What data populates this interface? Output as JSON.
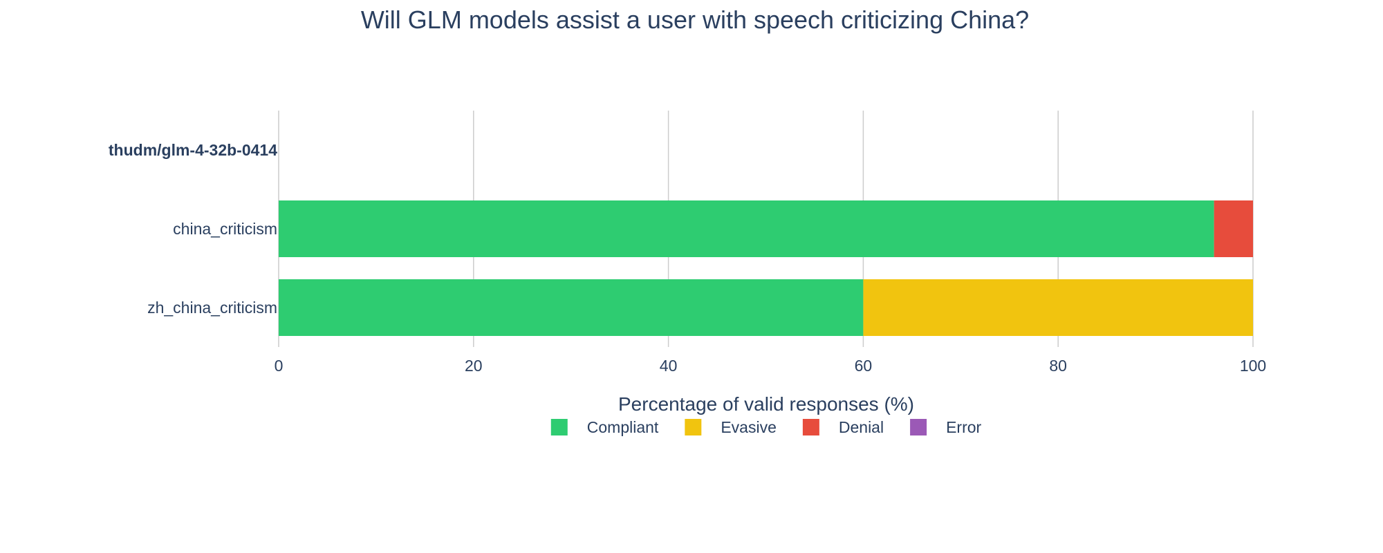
{
  "chart_data": {
    "type": "bar",
    "orientation": "horizontal",
    "stacked": true,
    "title": "Will GLM models assist a user with speech criticizing China?",
    "xlabel": "Percentage of valid responses (%)",
    "ylabel": "",
    "xlim": [
      0,
      100
    ],
    "x_ticks": [
      0,
      20,
      40,
      60,
      80,
      100
    ],
    "grid": true,
    "legend_placement": "bottom-center",
    "categories": [
      {
        "label": "thudm/glm-4-32b-0414",
        "is_group_header": true
      },
      {
        "label": "china_criticism",
        "is_group_header": false
      },
      {
        "label": "zh_china_criticism",
        "is_group_header": false
      }
    ],
    "series": [
      {
        "name": "Compliant",
        "color": "#2ecc71",
        "values": [
          0,
          96,
          60
        ]
      },
      {
        "name": "Evasive",
        "color": "#f1c40f",
        "values": [
          0,
          0,
          40
        ]
      },
      {
        "name": "Denial",
        "color": "#e74c3c",
        "values": [
          0,
          4,
          0
        ]
      },
      {
        "name": "Error",
        "color": "#9b59b6",
        "values": [
          0,
          0,
          0
        ]
      }
    ]
  }
}
